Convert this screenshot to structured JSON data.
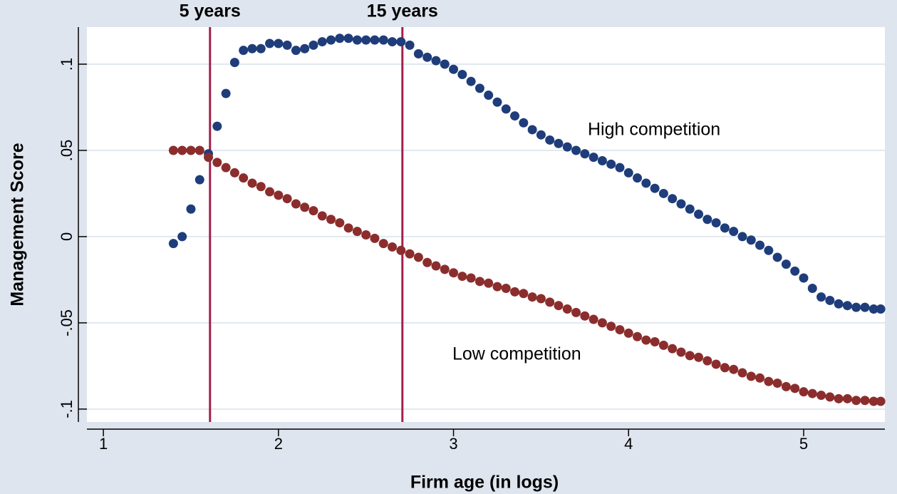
{
  "chart_data": {
    "type": "scatter",
    "x_label": "Firm age (in logs)",
    "y_label": "Management Score",
    "xlim": [
      0.906,
      5.464
    ],
    "ylim": [
      -0.1075,
      0.1215
    ],
    "xticks": [
      1,
      2,
      3,
      4,
      5
    ],
    "yticks": [
      {
        "value": -0.1,
        "label": "-.1"
      },
      {
        "value": -0.05,
        "label": "-.05"
      },
      0,
      {
        "value": 0.05,
        "label": ".05"
      },
      {
        "value": 0.1,
        "label": ".1"
      }
    ],
    "grid": true,
    "vlines": [
      {
        "value": 1.609,
        "label": "5 years"
      },
      {
        "value": 2.708,
        "label": "15 years"
      }
    ],
    "vline_color": "#a3204b",
    "annotations": [
      "High competition",
      "Low competition"
    ],
    "x": [
      1.4,
      1.45,
      1.5,
      1.55,
      1.6,
      1.65,
      1.7,
      1.75,
      1.8,
      1.85,
      1.9,
      1.95,
      2.0,
      2.05,
      2.1,
      2.15,
      2.2,
      2.25,
      2.3,
      2.35,
      2.4,
      2.45,
      2.5,
      2.55,
      2.6,
      2.65,
      2.7,
      2.75,
      2.8,
      2.85,
      2.9,
      2.95,
      3.0,
      3.05,
      3.1,
      3.15,
      3.2,
      3.25,
      3.3,
      3.35,
      3.4,
      3.45,
      3.5,
      3.55,
      3.6,
      3.65,
      3.7,
      3.75,
      3.8,
      3.85,
      3.9,
      3.95,
      4.0,
      4.05,
      4.1,
      4.15,
      4.2,
      4.25,
      4.3,
      4.35,
      4.4,
      4.45,
      4.5,
      4.55,
      4.6,
      4.65,
      4.7,
      4.75,
      4.8,
      4.85,
      4.9,
      4.95,
      5.0,
      5.05,
      5.1,
      5.15,
      5.2,
      5.25,
      5.3,
      5.35,
      5.4,
      5.44
    ],
    "series": [
      {
        "name": "High competition",
        "color": "#1f3d7a",
        "values": [
          -0.004,
          0,
          0.016,
          0.033,
          0.048,
          0.064,
          0.083,
          0.101,
          0.108,
          0.109,
          0.109,
          0.112,
          0.112,
          0.111,
          0.108,
          0.109,
          0.111,
          0.113,
          0.114,
          0.115,
          0.115,
          0.114,
          0.114,
          0.114,
          0.114,
          0.113,
          0.113,
          0.111,
          0.106,
          0.104,
          0.102,
          0.1,
          0.097,
          0.094,
          0.09,
          0.086,
          0.082,
          0.078,
          0.074,
          0.07,
          0.066,
          0.062,
          0.059,
          0.056,
          0.054,
          0.052,
          0.05,
          0.048,
          0.046,
          0.044,
          0.042,
          0.04,
          0.037,
          0.034,
          0.031,
          0.028,
          0.025,
          0.022,
          0.019,
          0.016,
          0.013,
          0.01,
          0.008,
          0.005,
          0.003,
          0,
          -0.002,
          -0.005,
          -0.008,
          -0.012,
          -0.016,
          -0.02,
          -0.024,
          -0.03,
          -0.035,
          -0.037,
          -0.039,
          -0.04,
          -0.041,
          -0.041,
          -0.042,
          -0.042
        ]
      },
      {
        "name": "Low competition",
        "color": "#8c2d2d",
        "values": [
          0.05,
          0.05,
          0.05,
          0.05,
          0.046,
          0.043,
          0.04,
          0.037,
          0.034,
          0.031,
          0.029,
          0.026,
          0.024,
          0.022,
          0.019,
          0.017,
          0.015,
          0.012,
          0.01,
          0.008,
          0.005,
          0.003,
          0.001,
          -0.001,
          -0.004,
          -0.006,
          -0.008,
          -0.01,
          -0.012,
          -0.015,
          -0.017,
          -0.019,
          -0.021,
          -0.023,
          -0.024,
          -0.026,
          -0.027,
          -0.029,
          -0.03,
          -0.032,
          -0.033,
          -0.035,
          -0.036,
          -0.038,
          -0.04,
          -0.042,
          -0.044,
          -0.046,
          -0.048,
          -0.05,
          -0.052,
          -0.054,
          -0.056,
          -0.058,
          -0.06,
          -0.061,
          -0.063,
          -0.065,
          -0.067,
          -0.069,
          -0.07,
          -0.072,
          -0.074,
          -0.076,
          -0.077,
          -0.079,
          -0.081,
          -0.082,
          -0.084,
          -0.085,
          -0.087,
          -0.088,
          -0.09,
          -0.091,
          -0.092,
          -0.093,
          -0.094,
          -0.094,
          -0.095,
          -0.095,
          -0.0955,
          -0.0955
        ]
      }
    ]
  }
}
